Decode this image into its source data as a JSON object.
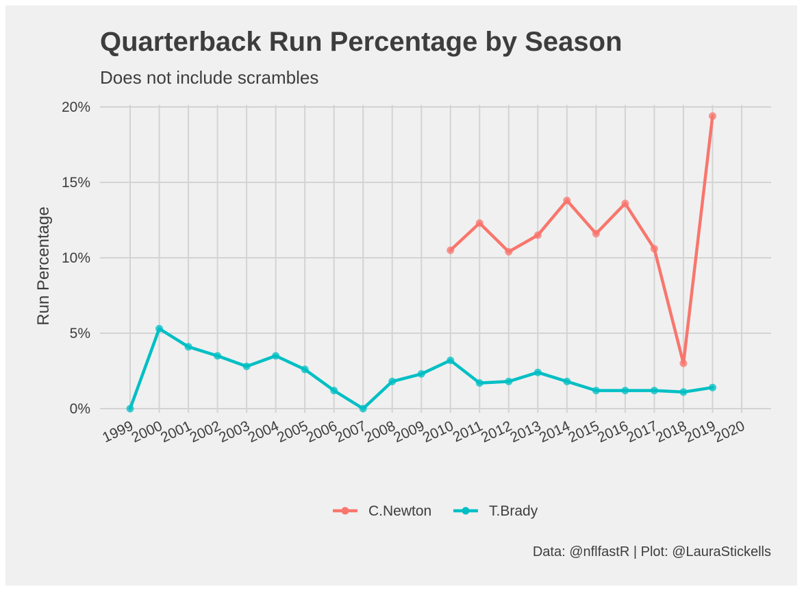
{
  "chart_data": {
    "type": "line",
    "title": "Quarterback Run Percentage by Season",
    "subtitle": "Does not include scrambles",
    "xlabel": "",
    "ylabel": "Run Percentage",
    "caption": "Data: @nflfastR | Plot: @LauraStickells",
    "x_ticks": [
      "1999",
      "2000",
      "2001",
      "2002",
      "2003",
      "2004",
      "2005",
      "2006",
      "2007",
      "2008",
      "2009",
      "2010",
      "2011",
      "2012",
      "2013",
      "2014",
      "2015",
      "2016",
      "2017",
      "2018",
      "2019",
      "2020"
    ],
    "y_ticks": [
      {
        "value": 0,
        "label": "0%"
      },
      {
        "value": 5,
        "label": "5%"
      },
      {
        "value": 10,
        "label": "10%"
      },
      {
        "value": 15,
        "label": "15%"
      },
      {
        "value": 20,
        "label": "20%"
      }
    ],
    "xlim": [
      1999,
      2020
    ],
    "ylim": [
      0,
      20
    ],
    "grid": true,
    "legend_position": "bottom",
    "series": [
      {
        "name": "C.Newton",
        "color": "#f8766d",
        "points": [
          {
            "x": 2010,
            "y": 10.5
          },
          {
            "x": 2011,
            "y": 12.3
          },
          {
            "x": 2012,
            "y": 10.4
          },
          {
            "x": 2013,
            "y": 11.5
          },
          {
            "x": 2014,
            "y": 13.8
          },
          {
            "x": 2015,
            "y": 11.6
          },
          {
            "x": 2016,
            "y": 13.6
          },
          {
            "x": 2017,
            "y": 10.6
          },
          {
            "x": 2018,
            "y": 3.0
          },
          {
            "x": 2019,
            "y": 19.4
          }
        ]
      },
      {
        "name": "T.Brady",
        "color": "#00bfc4",
        "points": [
          {
            "x": 1999,
            "y": 0.0
          },
          {
            "x": 2000,
            "y": 5.3
          },
          {
            "x": 2001,
            "y": 4.1
          },
          {
            "x": 2002,
            "y": 3.5
          },
          {
            "x": 2003,
            "y": 2.8
          },
          {
            "x": 2004,
            "y": 3.5
          },
          {
            "x": 2005,
            "y": 2.6
          },
          {
            "x": 2006,
            "y": 1.2
          },
          {
            "x": 2007,
            "y": 0.0
          },
          {
            "x": 2008,
            "y": 1.8
          },
          {
            "x": 2009,
            "y": 2.3
          },
          {
            "x": 2010,
            "y": 3.2
          },
          {
            "x": 2011,
            "y": 1.7
          },
          {
            "x": 2012,
            "y": 1.8
          },
          {
            "x": 2013,
            "y": 2.4
          },
          {
            "x": 2014,
            "y": 1.8
          },
          {
            "x": 2015,
            "y": 1.2
          },
          {
            "x": 2016,
            "y": 1.2
          },
          {
            "x": 2017,
            "y": 1.2
          },
          {
            "x": 2018,
            "y": 1.1
          },
          {
            "x": 2019,
            "y": 1.4
          }
        ]
      }
    ]
  }
}
